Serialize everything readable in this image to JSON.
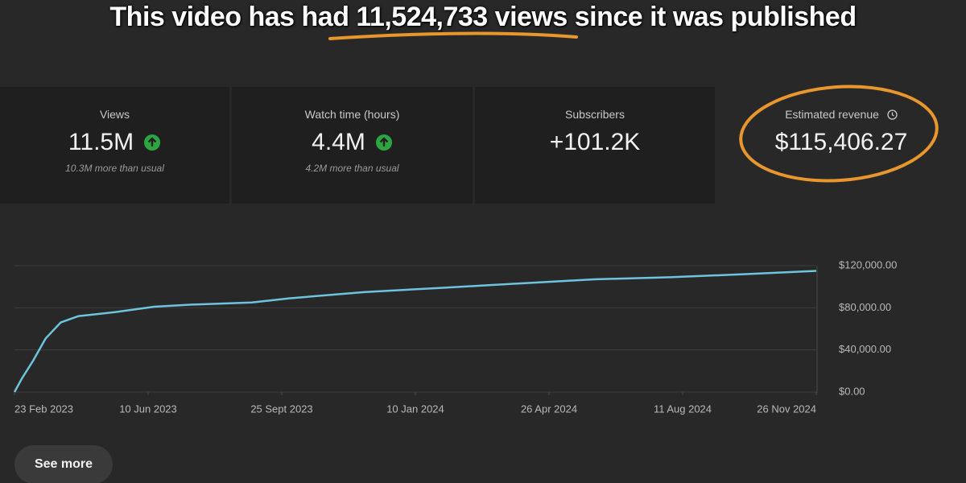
{
  "header": {
    "title": "This video has had 11,524,733 views since it was published"
  },
  "cards": [
    {
      "label": "Views",
      "value": "11.5M",
      "note": "10.3M more than usual"
    },
    {
      "label": "Watch time (hours)",
      "value": "4.4M",
      "note": "4.2M more than usual"
    },
    {
      "label": "Subscribers",
      "value": "+101.2K"
    },
    {
      "label": "Estimated revenue",
      "value": "$115,406.27"
    }
  ],
  "chart_data": {
    "type": "line",
    "color": "#6cc4dd",
    "x": [
      "2023-02-23",
      "2023-03-01",
      "2023-03-10",
      "2023-03-20",
      "2023-04-01",
      "2023-04-15",
      "2023-05-15",
      "2023-06-15",
      "2023-07-15",
      "2023-09-01",
      "2023-10-01",
      "2023-12-01",
      "2024-02-01",
      "2024-04-01",
      "2024-06-01",
      "2024-08-01",
      "2024-10-01",
      "2024-11-26"
    ],
    "values": [
      0,
      13000,
      30000,
      51000,
      66000,
      72000,
      76000,
      81000,
      83000,
      85000,
      89000,
      95000,
      99000,
      103000,
      107000,
      109000,
      112000,
      115000
    ],
    "xlim": [
      "2023-02-23",
      "2024-11-26"
    ],
    "xticks": [
      {
        "value": "2023-02-23",
        "label": "23 Feb 2023"
      },
      {
        "value": "2023-06-10",
        "label": "10 Jun 2023"
      },
      {
        "value": "2023-09-25",
        "label": "25 Sept 2023"
      },
      {
        "value": "2024-01-10",
        "label": "10 Jan 2024"
      },
      {
        "value": "2024-04-26",
        "label": "26 Apr 2024"
      },
      {
        "value": "2024-08-11",
        "label": "11 Aug 2024"
      },
      {
        "value": "2024-11-26",
        "label": "26 Nov 2024"
      }
    ],
    "ylim": [
      0,
      120000
    ],
    "yticks": [
      {
        "value": 0,
        "label": "$0.00"
      },
      {
        "value": 40000,
        "label": "$40,000.00"
      },
      {
        "value": 80000,
        "label": "$80,000.00"
      },
      {
        "value": 120000,
        "label": "$120,000.00"
      }
    ],
    "grid": true
  },
  "button": {
    "label": "See more"
  }
}
